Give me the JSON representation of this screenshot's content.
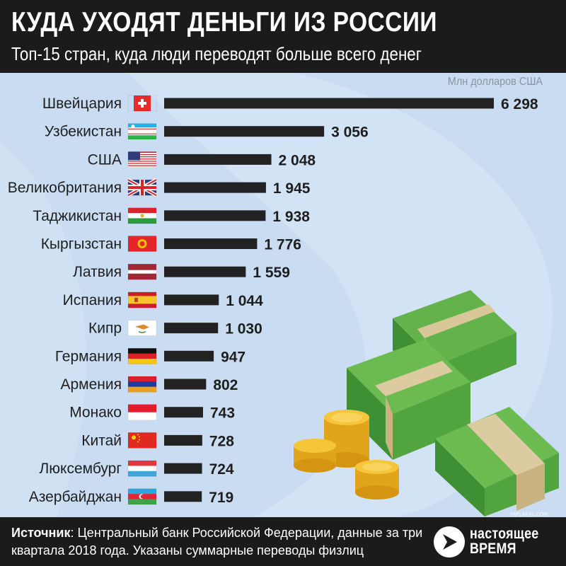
{
  "title": "КУДА УХОДЯТ ДЕНЬГИ ИЗ РОССИИ",
  "subtitle": "Топ-15 стран, куда люди переводят больше всего денег",
  "source_label": "Источник",
  "source_text": ": Центральный банк Российской Федерации, данные за три квартала 2018 года. Указаны суммарные переводы физлиц",
  "logo_line1": "настоящее",
  "logo_line2": "время",
  "watermark": "YAPLAKAL.COM",
  "colors": {
    "bar": "#222222",
    "background": "#c9dcf2",
    "header": "#1b1b1b"
  },
  "chart_data": {
    "type": "bar",
    "orientation": "horizontal",
    "unit_label": "Млн долларов США",
    "categories": [
      "Швейцария",
      "Узбекистан",
      "США",
      "Великобритания",
      "Таджикистан",
      "Кыргызстан",
      "Латвия",
      "Испания",
      "Кипр",
      "Германия",
      "Армения",
      "Монако",
      "Китай",
      "Люксембург",
      "Азербайджан"
    ],
    "value_labels": [
      "6 298",
      "3 056",
      "2 048",
      "1 945",
      "1 938",
      "1 776",
      "1 559",
      "1 044",
      "1 030",
      "947",
      "802",
      "743",
      "728",
      "724",
      "719"
    ],
    "values": [
      6298,
      3056,
      2048,
      1945,
      1938,
      1776,
      1559,
      1044,
      1030,
      947,
      802,
      743,
      728,
      724,
      719
    ],
    "flags": [
      "switzerland-flag",
      "uzbekistan-flag",
      "usa-flag",
      "uk-flag",
      "tajikistan-flag",
      "kyrgyzstan-flag",
      "latvia-flag",
      "spain-flag",
      "cyprus-flag",
      "germany-flag",
      "armenia-flag",
      "monaco-flag",
      "china-flag",
      "luxembourg-flag",
      "azerbaijan-flag"
    ],
    "xlim": [
      0,
      6298
    ],
    "grid": false,
    "legend": false
  }
}
